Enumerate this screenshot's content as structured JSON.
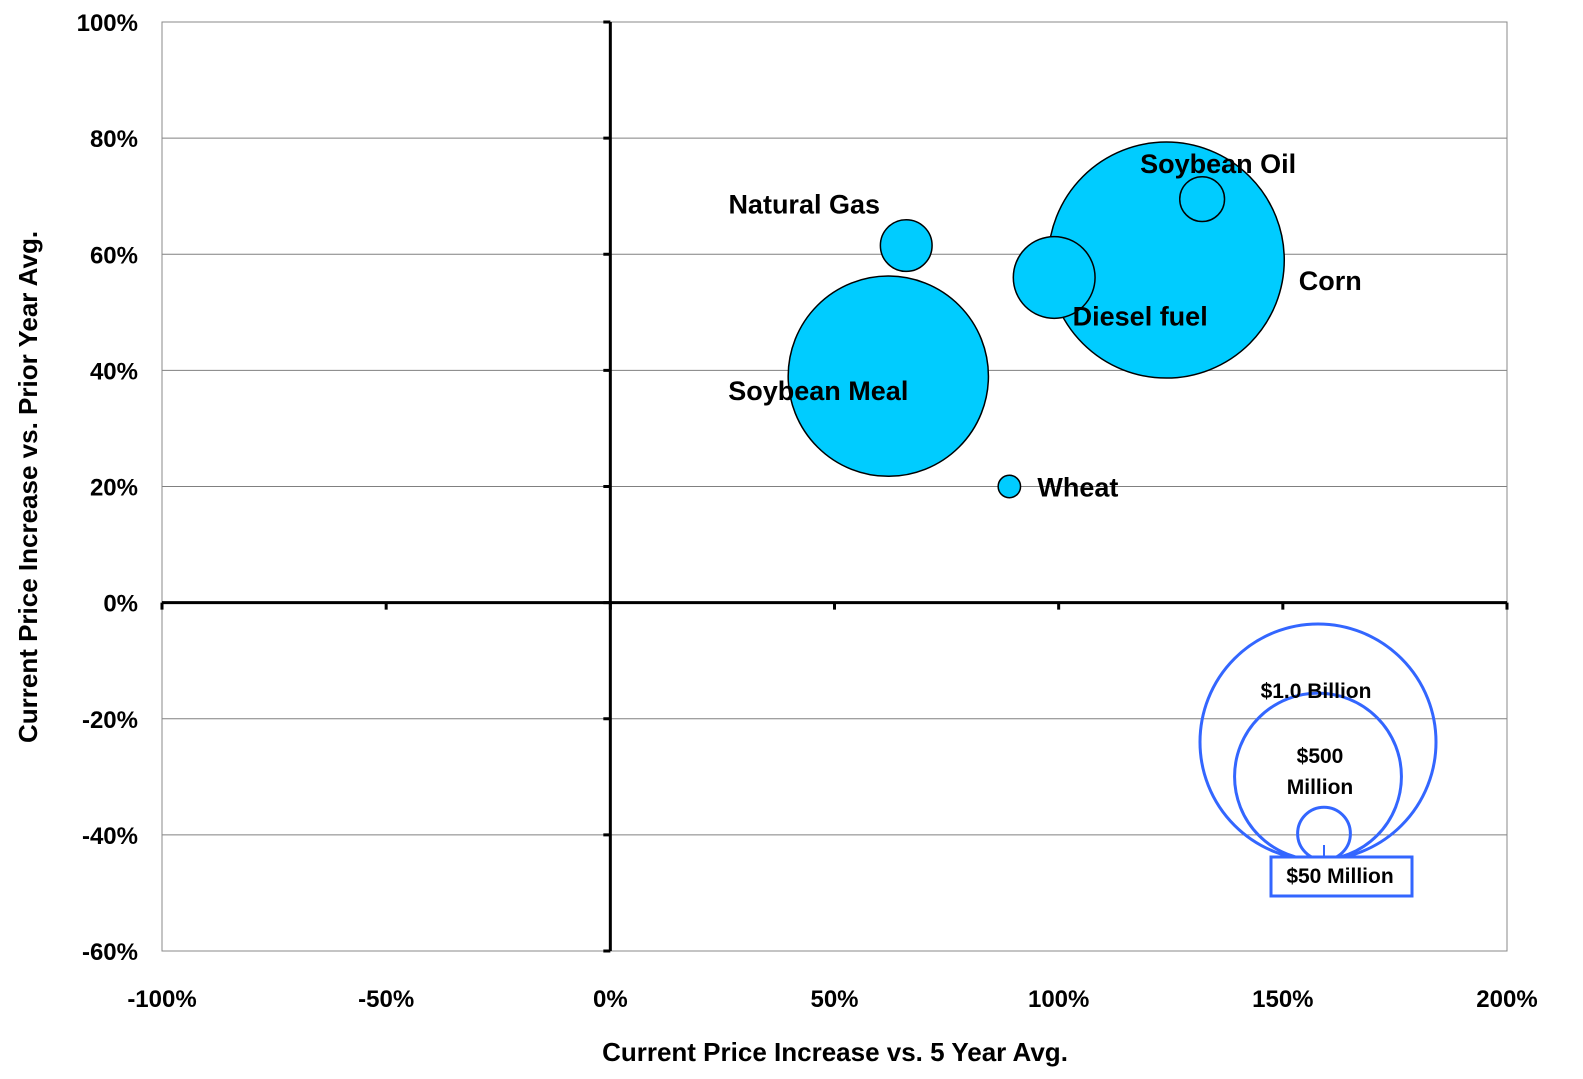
{
  "chart_data": {
    "type": "bubble",
    "xlabel": "Current Price Increase vs. 5 Year Avg.",
    "ylabel": "Current Price Increase vs. Prior Year Avg.",
    "xlim": [
      -1.0,
      2.0
    ],
    "ylim": [
      -0.6,
      1.0
    ],
    "x_ticks": [
      "-100%",
      "-50%",
      "0%",
      "50%",
      "100%",
      "150%",
      "200%"
    ],
    "y_ticks": [
      "100%",
      "80%",
      "60%",
      "40%",
      "20%",
      "0%",
      "-20%",
      "-40%",
      "-60%"
    ],
    "x_tick_values": [
      -1.0,
      -0.5,
      0.0,
      0.5,
      1.0,
      1.5,
      2.0
    ],
    "y_tick_values": [
      1.0,
      0.8,
      0.6,
      0.4,
      0.2,
      0.0,
      -0.2,
      -0.4,
      -0.6
    ],
    "horizontal_gridlines": true,
    "series": [
      {
        "name": "Corn",
        "x": 1.24,
        "y": 0.59,
        "size_rel": 1.0
      },
      {
        "name": "Soybean Meal",
        "x": 0.62,
        "y": 0.39,
        "size_rel": 0.72
      },
      {
        "name": "Diesel fuel",
        "x": 0.99,
        "y": 0.56,
        "size_rel": 0.12
      },
      {
        "name": "Natural Gas",
        "x": 0.66,
        "y": 0.615,
        "size_rel": 0.048
      },
      {
        "name": "Soybean Oil",
        "x": 1.32,
        "y": 0.695,
        "size_rel": 0.036
      },
      {
        "name": "Wheat",
        "x": 0.89,
        "y": 0.2,
        "size_rel": 0.009
      }
    ],
    "bubble_color": "#00CCFF",
    "bubble_stroke": "#000000",
    "legend": {
      "position": "bottom-right",
      "color": "#3366FF",
      "items": [
        {
          "label": "$1.0 Billion",
          "size_rel": 1.0
        },
        {
          "label_lines": [
            "$500",
            "Million"
          ],
          "size_rel": 0.5
        },
        {
          "label": "$50 Million",
          "size_rel": 0.05
        }
      ]
    }
  }
}
